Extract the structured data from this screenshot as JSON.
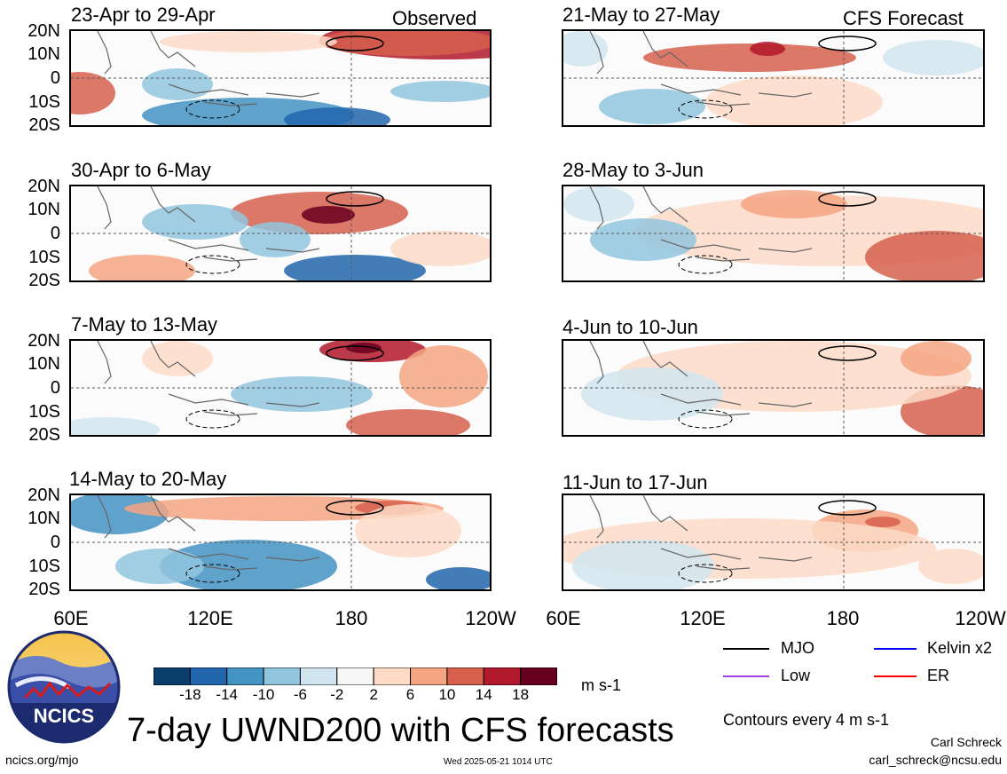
{
  "left_column_label": "Observed",
  "right_column_label": "CFS Forecast",
  "panels_left": [
    {
      "title": "23-Apr to 29-Apr"
    },
    {
      "title": "30-Apr to 6-May"
    },
    {
      "title": "7-May to 13-May"
    },
    {
      "title": "14-May to 20-May"
    }
  ],
  "panels_right": [
    {
      "title": "21-May to 27-May"
    },
    {
      "title": "28-May to 3-Jun"
    },
    {
      "title": "4-Jun to 10-Jun"
    },
    {
      "title": "11-Jun to 17-Jun"
    }
  ],
  "lat_labels": [
    "20N",
    "10N",
    "0",
    "10S",
    "20S"
  ],
  "lon_labels_left": [
    "60E",
    "120E",
    "180",
    "120W"
  ],
  "lon_labels_right": [
    "60E",
    "120E",
    "180",
    "120W"
  ],
  "colorbar": {
    "tick_labels": [
      "-18",
      "-14",
      "-10",
      "-6",
      "-2",
      "2",
      "6",
      "10",
      "14",
      "18"
    ],
    "colors": [
      "#0a3d6b",
      "#2166ac",
      "#4393c3",
      "#92c5de",
      "#d1e5f0",
      "#f7f7f7",
      "#fddbc7",
      "#f4a582",
      "#d6604d",
      "#b2182b",
      "#67001f"
    ],
    "units": "m s-1"
  },
  "legend": {
    "items": [
      {
        "label": "MJO",
        "color": "#000000"
      },
      {
        "label": "Kelvin x2",
        "color": "#0000ff"
      },
      {
        "label": "Low",
        "color": "#a040e0"
      },
      {
        "label": "ER",
        "color": "#ff0000"
      }
    ],
    "contour_note": "Contours every 4 m s-1"
  },
  "logo": {
    "text": "NCICS"
  },
  "main_title": "7-day UWND200 with CFS forecasts",
  "footer": {
    "url": "ncics.org/mjo",
    "timestamp": "Wed 2025-05-21 1014 UTC",
    "author": "Carl Schreck",
    "email": "carl_schreck@ncsu.edu"
  }
}
